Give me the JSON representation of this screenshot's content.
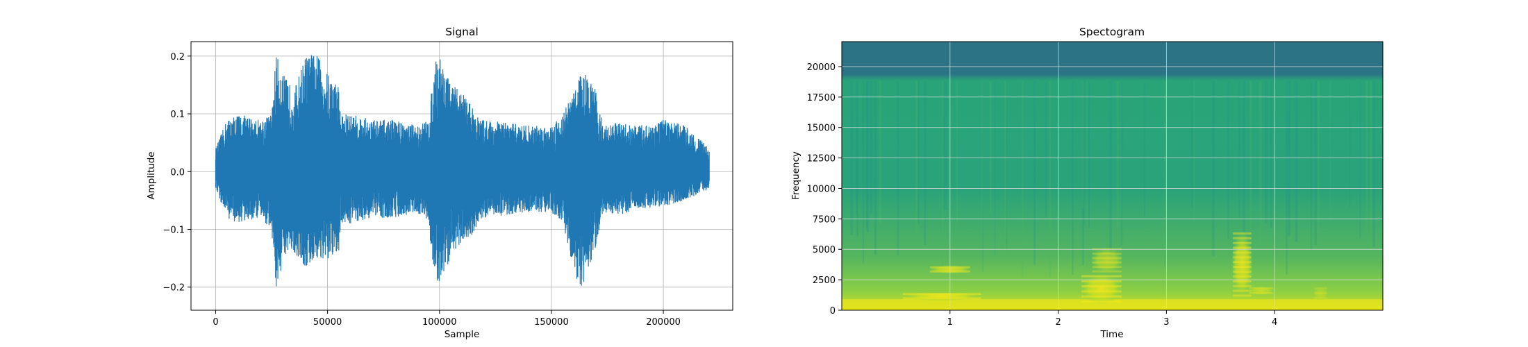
{
  "chart_data": [
    {
      "type": "line",
      "title": "Signal",
      "xlabel": "Sample",
      "ylabel": "Amplitude",
      "xlim": [
        -11000,
        231000
      ],
      "ylim": [
        -0.24,
        0.225
      ],
      "xticks": [
        0,
        50000,
        100000,
        150000,
        200000
      ],
      "xtick_labels": [
        "0",
        "50000",
        "100000",
        "150000",
        "200000"
      ],
      "yticks": [
        -0.2,
        -0.1,
        0.0,
        0.1,
        0.2
      ],
      "ytick_labels": [
        "−0.2",
        "−0.1",
        "0.0",
        "0.1",
        "0.2"
      ],
      "grid": true,
      "color": "#1f77b4",
      "sample_count": 220500,
      "envelope": {
        "x": [
          0,
          5000,
          10000,
          20000,
          25000,
          27000,
          30000,
          35000,
          40000,
          45000,
          50000,
          55000,
          56000,
          60000,
          70000,
          80000,
          90000,
          95000,
          98000,
          100000,
          105000,
          110000,
          115000,
          118000,
          120000,
          130000,
          140000,
          150000,
          155000,
          160000,
          163000,
          165000,
          170000,
          173000,
          180000,
          190000,
          200000,
          210000,
          220500
        ],
        "upper": [
          0.04,
          0.09,
          0.1,
          0.09,
          0.1,
          0.205,
          0.17,
          0.14,
          0.2,
          0.205,
          0.17,
          0.15,
          0.1,
          0.1,
          0.09,
          0.09,
          0.08,
          0.09,
          0.19,
          0.205,
          0.15,
          0.14,
          0.11,
          0.09,
          0.09,
          0.085,
          0.08,
          0.08,
          0.1,
          0.14,
          0.17,
          0.17,
          0.14,
          0.08,
          0.085,
          0.08,
          0.09,
          0.08,
          0.04
        ],
        "lower": [
          -0.03,
          -0.08,
          -0.09,
          -0.08,
          -0.1,
          -0.21,
          -0.16,
          -0.14,
          -0.17,
          -0.15,
          -0.16,
          -0.14,
          -0.09,
          -0.09,
          -0.08,
          -0.08,
          -0.07,
          -0.09,
          -0.19,
          -0.2,
          -0.15,
          -0.12,
          -0.11,
          -0.09,
          -0.08,
          -0.075,
          -0.07,
          -0.07,
          -0.09,
          -0.17,
          -0.21,
          -0.19,
          -0.13,
          -0.07,
          -0.075,
          -0.065,
          -0.06,
          -0.05,
          -0.03
        ]
      }
    },
    {
      "type": "heatmap",
      "title": "Spectogram",
      "xlabel": "Time",
      "ylabel": "Frequency",
      "xlim": [
        0.0,
        5.0
      ],
      "ylim": [
        0,
        22050
      ],
      "xticks": [
        1,
        2,
        3,
        4
      ],
      "xtick_labels": [
        "1",
        "2",
        "3",
        "4"
      ],
      "yticks": [
        0,
        2500,
        5000,
        7500,
        10000,
        12500,
        15000,
        17500,
        20000
      ],
      "ytick_labels": [
        "0",
        "2500",
        "5000",
        "7500",
        "10000",
        "12500",
        "15000",
        "17500",
        "20000"
      ],
      "grid": true,
      "colormap": "viridis",
      "background_colors": {
        "high_band": "#2b7385",
        "mid_band": "#2aa37a",
        "low_band": "#7ac84a",
        "bottom_band": "#d4e01f"
      },
      "high_band_cutoff": 18800,
      "formant_regions": [
        {
          "t": [
            0.55,
            1.3
          ],
          "f": [
            800,
            1500
          ],
          "intensity": 1.0
        },
        {
          "t": [
            0.8,
            1.2
          ],
          "f": [
            3000,
            3700
          ],
          "intensity": 0.8
        },
        {
          "t": [
            2.2,
            2.6
          ],
          "f": [
            500,
            3000
          ],
          "intensity": 0.9
        },
        {
          "t": [
            2.3,
            2.6
          ],
          "f": [
            3000,
            5200
          ],
          "intensity": 0.6
        },
        {
          "t": [
            3.6,
            3.8
          ],
          "f": [
            1000,
            6500
          ],
          "intensity": 0.85
        },
        {
          "t": [
            3.75,
            4.0
          ],
          "f": [
            1200,
            2000
          ],
          "intensity": 0.6
        },
        {
          "t": [
            4.35,
            4.5
          ],
          "f": [
            800,
            2000
          ],
          "intensity": 0.4
        }
      ]
    }
  ]
}
